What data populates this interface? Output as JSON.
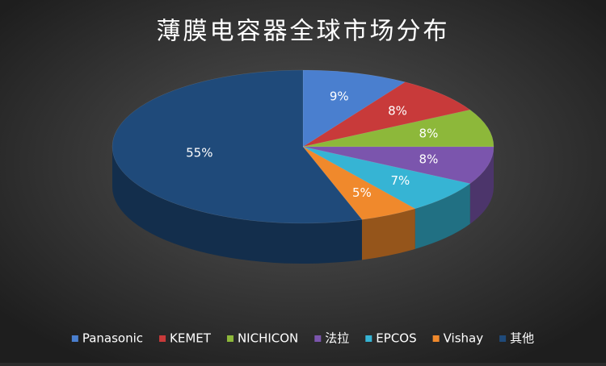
{
  "chart_data": {
    "type": "pie3d",
    "title": "薄膜电容器全球市场分布",
    "categories": [
      "Panasonic",
      "KEMET",
      "NICHICON",
      "法拉",
      "EPCOS",
      "Vishay",
      "其他"
    ],
    "values": [
      9,
      8,
      8,
      8,
      7,
      5,
      55
    ],
    "value_labels": [
      "9%",
      "8%",
      "8%",
      "8%",
      "7%",
      "5%",
      "55%"
    ],
    "colors": [
      "#4a7fcf",
      "#c83a3a",
      "#8db83a",
      "#7b55ad",
      "#36b4d4",
      "#f0892c",
      "#1f4a7a"
    ],
    "legend": "bottom"
  }
}
